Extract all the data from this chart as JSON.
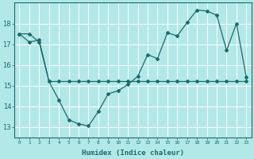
{
  "xlabel": "Humidex (Indice chaleur)",
  "background_color": "#b2e8e8",
  "grid_color": "#ffffff",
  "line_color": "#1a6b6b",
  "x_labels": [
    "0",
    "1",
    "2",
    "3",
    "4",
    "5",
    "6",
    "7",
    "8",
    "9",
    "10",
    "11",
    "12",
    "13",
    "14",
    "15",
    "16",
    "17",
    "18",
    "19",
    "20",
    "21",
    "22",
    "23"
  ],
  "ylim": [
    12.5,
    19.0
  ],
  "yticks": [
    13,
    14,
    15,
    16,
    17,
    18
  ],
  "line1_x": [
    0,
    1,
    2,
    3,
    4,
    5,
    6,
    7,
    8,
    9,
    10,
    11,
    12,
    13,
    14,
    15,
    16,
    17,
    18,
    19,
    20,
    21,
    22,
    23
  ],
  "line1_y": [
    17.5,
    17.5,
    17.1,
    15.2,
    14.3,
    13.35,
    13.15,
    13.05,
    13.75,
    14.6,
    14.75,
    15.05,
    15.45,
    16.5,
    16.3,
    17.55,
    17.4,
    18.05,
    18.65,
    18.6,
    18.4,
    16.7,
    18.0,
    15.4
  ],
  "line2_x": [
    0,
    1,
    2,
    3,
    4,
    5,
    6,
    7,
    8,
    9,
    10,
    11,
    12,
    13,
    14,
    15,
    16,
    17,
    18,
    19,
    20,
    21,
    22,
    23
  ],
  "line2_y": [
    17.5,
    17.1,
    17.2,
    15.2,
    15.2,
    15.2,
    15.2,
    15.2,
    15.2,
    15.2,
    15.2,
    15.2,
    15.2,
    15.2,
    15.2,
    15.2,
    15.2,
    15.2,
    15.2,
    15.2,
    15.2,
    15.2,
    15.2,
    15.2
  ]
}
